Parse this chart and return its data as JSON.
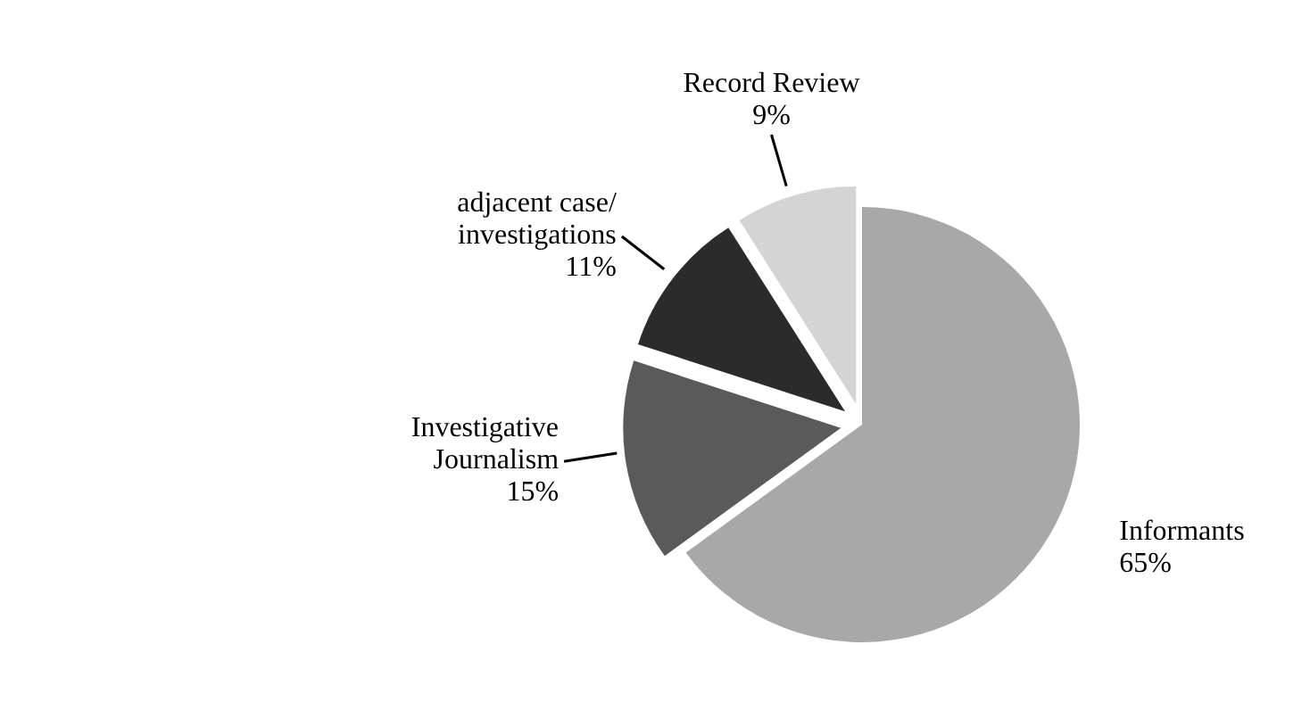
{
  "chart_data": {
    "type": "pie",
    "categories": [
      "Informants",
      "Investigative Journalism",
      "adjacent case/ investigations",
      "Record Review"
    ],
    "values": [
      65,
      15,
      11,
      9
    ],
    "value_labels": [
      "65%",
      "15%",
      "11%",
      "9%"
    ],
    "colors": [
      "#a8a8a8",
      "#5a5a5a",
      "#2b2b2b",
      "#d4d4d4"
    ],
    "legend": false
  }
}
